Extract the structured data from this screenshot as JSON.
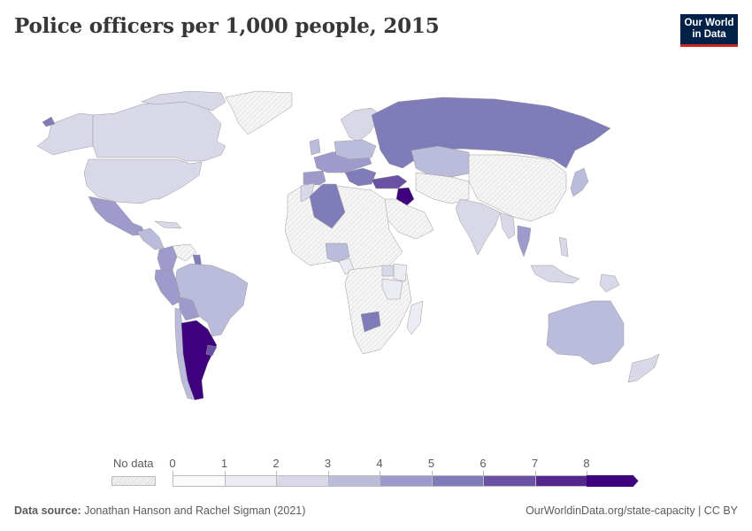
{
  "header": {
    "title": "Police officers per 1,000 people, 2015",
    "logo_line1": "Our World",
    "logo_line2": "in Data"
  },
  "legend": {
    "no_data_label": "No data",
    "ticks": [
      "0",
      "1",
      "2",
      "3",
      "4",
      "5",
      "6",
      "7",
      "8"
    ],
    "bins": [
      {
        "from": 0,
        "to": 1,
        "color": "#fbfbfd"
      },
      {
        "from": 1,
        "to": 2,
        "color": "#ebebf4"
      },
      {
        "from": 2,
        "to": 3,
        "color": "#d8d8e8"
      },
      {
        "from": 3,
        "to": 4,
        "color": "#bbbbdb"
      },
      {
        "from": 4,
        "to": 5,
        "color": "#9e9acb"
      },
      {
        "from": 5,
        "to": 6,
        "color": "#807cba"
      },
      {
        "from": 6,
        "to": 7,
        "color": "#6a51a3"
      },
      {
        "from": 7,
        "to": 8,
        "color": "#54278f"
      },
      {
        "from": 8,
        "to": null,
        "color": "#3f007d"
      }
    ]
  },
  "footer": {
    "source_label": "Data source:",
    "source_text": "Jonathan Hanson and Rachel Sigman (2021)",
    "attribution": "OurWorldinData.org/state-capacity | CC BY"
  },
  "chart_data": {
    "type": "choropleth",
    "title": "Police officers per 1,000 people, 2015",
    "legend_bins": [
      "0-1",
      "1-2",
      "2-3",
      "3-4",
      "4-5",
      "5-6",
      "6-7",
      "7-8",
      "8+"
    ],
    "regions": [
      {
        "name": "Canada",
        "bin": "2-3"
      },
      {
        "name": "United States",
        "bin": "2-3"
      },
      {
        "name": "Alaska (US)",
        "bin": "2-3"
      },
      {
        "name": "Greenland",
        "bin": "No data"
      },
      {
        "name": "Mexico",
        "bin": "4-5"
      },
      {
        "name": "Central America",
        "bin": "3-4"
      },
      {
        "name": "Colombia",
        "bin": "4-5"
      },
      {
        "name": "Venezuela",
        "bin": "No data"
      },
      {
        "name": "Guyana",
        "bin": "5-6"
      },
      {
        "name": "Brazil",
        "bin": "3-4"
      },
      {
        "name": "Peru",
        "bin": "4-5"
      },
      {
        "name": "Bolivia",
        "bin": "4-5"
      },
      {
        "name": "Chile",
        "bin": "3-4"
      },
      {
        "name": "Argentina",
        "bin": "8+"
      },
      {
        "name": "Uruguay",
        "bin": "6-7"
      },
      {
        "name": "Russia",
        "bin": "5-6"
      },
      {
        "name": "Kazakhstan",
        "bin": "3-4"
      },
      {
        "name": "China",
        "bin": "No data"
      },
      {
        "name": "Mongolia",
        "bin": "No data"
      },
      {
        "name": "India",
        "bin": "2-3"
      },
      {
        "name": "Thailand",
        "bin": "4-5"
      },
      {
        "name": "Japan",
        "bin": "3-4"
      },
      {
        "name": "Turkey",
        "bin": "6-7"
      },
      {
        "name": "Iraq",
        "bin": "8+"
      },
      {
        "name": "Western Europe",
        "bin": "4-5"
      },
      {
        "name": "Spain",
        "bin": "4-5"
      },
      {
        "name": "Nordic countries",
        "bin": "2-3"
      },
      {
        "name": "Algeria",
        "bin": "5-6"
      },
      {
        "name": "Morocco",
        "bin": "2-3"
      },
      {
        "name": "Nigeria",
        "bin": "3-4"
      },
      {
        "name": "Cameroon",
        "bin": "1-2"
      },
      {
        "name": "Uganda",
        "bin": "2-3"
      },
      {
        "name": "Kenya",
        "bin": "1-2"
      },
      {
        "name": "Tanzania",
        "bin": "1-2"
      },
      {
        "name": "Madagascar",
        "bin": "1-2"
      },
      {
        "name": "Botswana",
        "bin": "5-6"
      },
      {
        "name": "Indonesia",
        "bin": "2-3"
      },
      {
        "name": "Philippines",
        "bin": "2-3"
      },
      {
        "name": "Papua New Guinea",
        "bin": "2-3"
      },
      {
        "name": "Australia",
        "bin": "3-4"
      },
      {
        "name": "New Zealand",
        "bin": "2-3"
      }
    ]
  }
}
